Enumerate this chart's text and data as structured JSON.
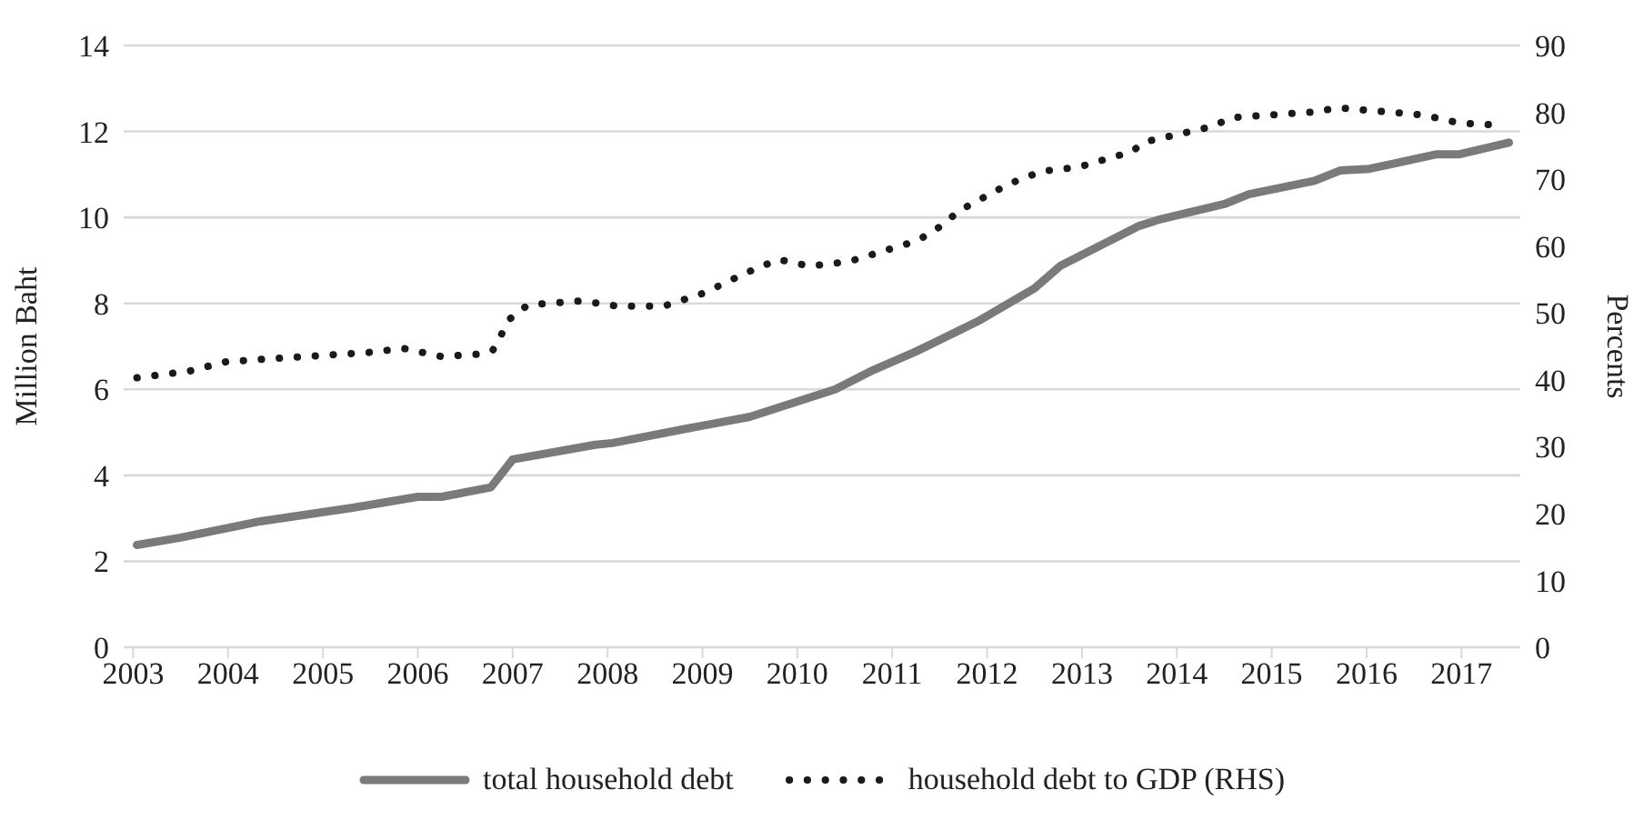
{
  "chart_data": {
    "type": "line",
    "ylabel": "Million Baht",
    "y2label": "Percents",
    "xlim": [
      2002.9,
      2017.62
    ],
    "xticks": [
      2003,
      2004,
      2005,
      2006,
      2007,
      2008,
      2009,
      2010,
      2011,
      2012,
      2013,
      2014,
      2015,
      2016,
      2017
    ],
    "ylim": [
      0,
      14
    ],
    "yticks": [
      0,
      2,
      4,
      6,
      8,
      10,
      12,
      14
    ],
    "y2lim": [
      0,
      90
    ],
    "y2ticks": [
      0,
      10,
      20,
      30,
      40,
      50,
      60,
      70,
      80,
      90
    ],
    "grid": "y",
    "legend": "bottom",
    "series": [
      {
        "name": "total household debt",
        "color": "#7a7a7a",
        "line_style": "solid",
        "x": [
          2003.04,
          2003.5,
          2004.34,
          2005.3,
          2006.0,
          2006.25,
          2006.77,
          2007.0,
          2007.87,
          2008.05,
          2008.82,
          2009.5,
          2010.4,
          2010.8,
          2011.24,
          2011.9,
          2012.5,
          2012.77,
          2013.6,
          2013.8,
          2014.5,
          2014.76,
          2015.45,
          2015.72,
          2016.03,
          2016.74,
          2016.98,
          2017.5
        ],
        "values": [
          2.38,
          2.55,
          2.93,
          3.24,
          3.5,
          3.5,
          3.72,
          4.37,
          4.71,
          4.75,
          5.08,
          5.36,
          6.0,
          6.45,
          6.87,
          7.58,
          8.35,
          8.87,
          9.8,
          9.94,
          10.31,
          10.54,
          10.85,
          11.09,
          11.13,
          11.47,
          11.47,
          11.74
        ]
      },
      {
        "name": "household debt to GDP (RHS)",
        "color": "#1a1a1a",
        "line_style": "dotted",
        "axis": "y2",
        "x": [
          2003.04,
          2003.59,
          2003.98,
          2004.72,
          2005.49,
          2005.85,
          2006.24,
          2006.62,
          2006.79,
          2006.97,
          2007.16,
          2007.73,
          2008.11,
          2008.59,
          2009.02,
          2009.46,
          2009.8,
          2010.13,
          2010.55,
          2011.24,
          2011.43,
          2011.72,
          2012.23,
          2012.58,
          2012.96,
          2013.52,
          2013.67,
          2014.38,
          2014.57,
          2015.49,
          2015.68,
          2016.6,
          2016.98,
          2017.37
        ],
        "values": [
          40.3,
          41.3,
          42.7,
          43.4,
          44.1,
          44.7,
          43.5,
          43.8,
          44.4,
          49.1,
          51.2,
          51.8,
          51,
          51,
          53,
          56,
          58,
          57,
          57.7,
          60.7,
          62.1,
          65.4,
          69.3,
          71.2,
          71.8,
          74.1,
          75.6,
          77.9,
          79.2,
          80.1,
          80.7,
          79.6,
          78.4,
          78.1
        ]
      }
    ]
  }
}
